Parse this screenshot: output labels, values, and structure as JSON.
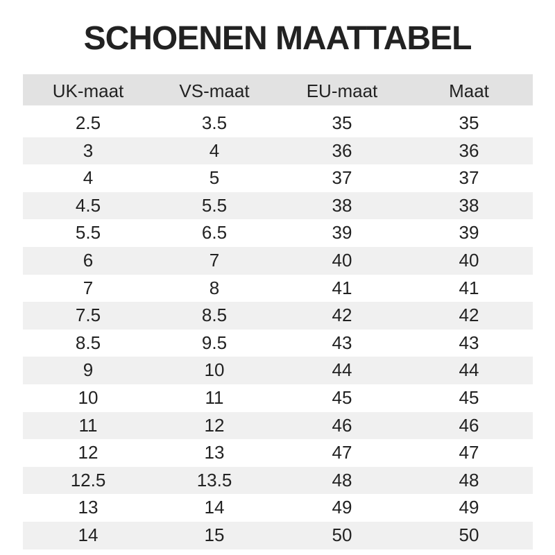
{
  "header": {
    "title": "SCHOENEN MAATTABEL"
  },
  "table": {
    "columns": [
      "UK-maat",
      "VS-maat",
      "EU-maat",
      "Maat"
    ],
    "rows": [
      [
        "2.5",
        "3.5",
        "35",
        "35"
      ],
      [
        "3",
        "4",
        "36",
        "36"
      ],
      [
        "4",
        "5",
        "37",
        "37"
      ],
      [
        "4.5",
        "5.5",
        "38",
        "38"
      ],
      [
        "5.5",
        "6.5",
        "39",
        "39"
      ],
      [
        "6",
        "7",
        "40",
        "40"
      ],
      [
        "7",
        "8",
        "41",
        "41"
      ],
      [
        "7.5",
        "8.5",
        "42",
        "42"
      ],
      [
        "8.5",
        "9.5",
        "43",
        "43"
      ],
      [
        "9",
        "10",
        "44",
        "44"
      ],
      [
        "10",
        "11",
        "45",
        "45"
      ],
      [
        "11",
        "12",
        "46",
        "46"
      ],
      [
        "12",
        "13",
        "47",
        "47"
      ],
      [
        "12.5",
        "13.5",
        "48",
        "48"
      ],
      [
        "13",
        "14",
        "49",
        "49"
      ],
      [
        "14",
        "15",
        "50",
        "50"
      ]
    ]
  }
}
